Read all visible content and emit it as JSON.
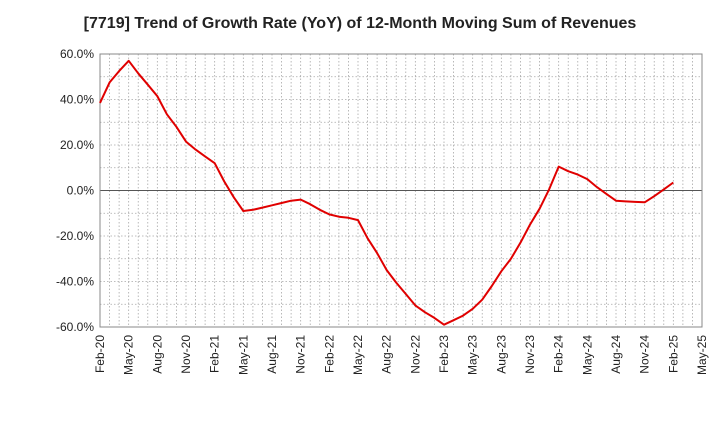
{
  "chart_data": {
    "type": "line",
    "title": "[7719]  Trend of Growth Rate (YoY) of 12-Month Moving Sum of Revenues",
    "xlabel": "",
    "ylabel": "",
    "ylim": [
      -60,
      60
    ],
    "yticks": [
      "60.0%",
      "40.0%",
      "20.0%",
      "0.0%",
      "-20.0%",
      "-40.0%",
      "-60.0%"
    ],
    "ytick_values": [
      60,
      40,
      20,
      0,
      -20,
      -40,
      -60
    ],
    "x_tick_labels": [
      "Feb-20",
      "May-20",
      "Aug-20",
      "Nov-20",
      "Feb-21",
      "May-21",
      "Aug-21",
      "Nov-21",
      "Feb-22",
      "May-22",
      "Aug-22",
      "Nov-22",
      "Feb-23",
      "May-23",
      "Aug-23",
      "Nov-23",
      "Feb-24",
      "May-24",
      "Aug-24",
      "Nov-24",
      "Feb-25",
      "May-25"
    ],
    "grid": true,
    "line_color": "#e00000",
    "series": [
      {
        "x": [
          "Feb-20",
          "Mar-20",
          "Apr-20",
          "May-20",
          "Jun-20",
          "Jul-20",
          "Aug-20",
          "Sep-20",
          "Oct-20",
          "Nov-20",
          "Dec-20",
          "Jan-21",
          "Feb-21",
          "Mar-21",
          "Apr-21",
          "May-21",
          "Jun-21",
          "Jul-21",
          "Aug-21",
          "Sep-21",
          "Oct-21",
          "Nov-21",
          "Dec-21",
          "Jan-22",
          "Feb-22",
          "Mar-22",
          "Apr-22",
          "May-22",
          "Jun-22",
          "Jul-22",
          "Aug-22",
          "Sep-22",
          "Oct-22",
          "Nov-22",
          "Dec-22",
          "Jan-23",
          "Feb-23",
          "Mar-23",
          "Apr-23",
          "May-23",
          "Jun-23",
          "Jul-23",
          "Aug-23",
          "Sep-23",
          "Oct-23",
          "Nov-23",
          "Dec-23",
          "Jan-24",
          "Feb-24",
          "Mar-24",
          "Apr-24",
          "May-24",
          "Jun-24",
          "Jul-24",
          "Aug-24",
          "Sep-24",
          "Oct-24",
          "Nov-24",
          "Dec-24",
          "Jan-25",
          "Feb-25"
        ],
        "values": [
          38.5,
          47.5,
          52.5,
          57.0,
          51.5,
          46.5,
          41.5,
          33.5,
          28.0,
          21.5,
          18.0,
          15.0,
          12.0,
          4.0,
          -3.0,
          -9.0,
          -8.5,
          -7.5,
          -6.5,
          -5.5,
          -4.5,
          -4.0,
          -6.0,
          -8.5,
          -10.5,
          -11.5,
          -12.0,
          -13.0,
          -21.0,
          -27.5,
          -35.0,
          -40.5,
          -45.5,
          -50.5,
          -53.5,
          -56.0,
          -59.0,
          -57.0,
          -55.0,
          -52.0,
          -48.0,
          -42.0,
          -35.5,
          -30.0,
          -23.0,
          -15.0,
          -8.0,
          0.5,
          10.5,
          8.5,
          7.0,
          5.0,
          1.5,
          -1.5,
          -4.5,
          -4.8,
          -5.0,
          -5.2,
          -2.5,
          0.5,
          3.5
        ]
      }
    ]
  }
}
